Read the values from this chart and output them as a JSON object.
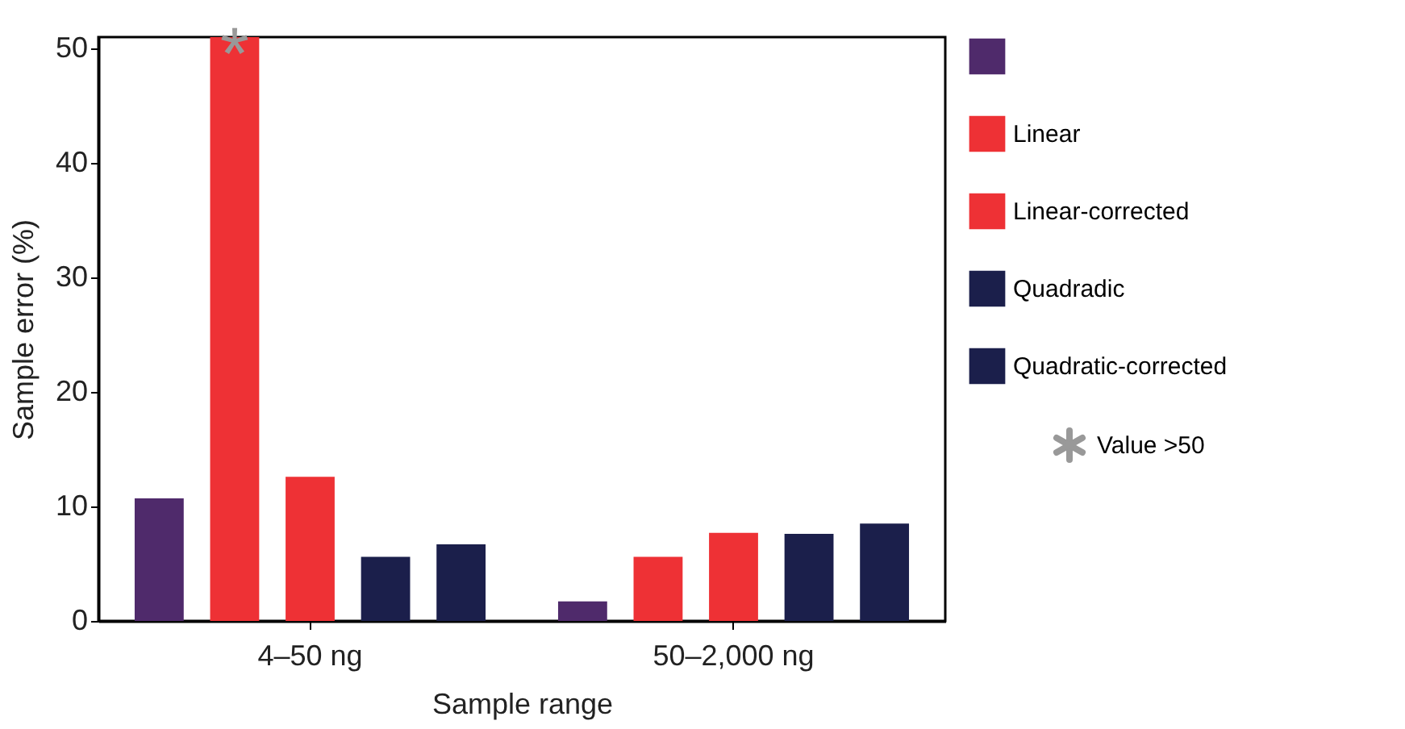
{
  "chart_data": {
    "type": "bar",
    "xlabel": "Sample range",
    "ylabel": "Sample error (%)",
    "categories": [
      "4–50 ng",
      "50–2,000 ng"
    ],
    "series": [
      {
        "color": "#4f2a6b",
        "values": [
          10.7,
          1.7
        ]
      },
      {
        "name": "Linear",
        "color": "#ee3135",
        "values": [
          51,
          5.6
        ]
      },
      {
        "name": "Linear-corrected",
        "color": "#ee3135",
        "values": [
          12.6,
          7.7
        ]
      },
      {
        "name": "Quadradic",
        "color": "#1b1f4b",
        "values": [
          5.6,
          7.6
        ]
      },
      {
        "name": "Quadratic-corrected",
        "color": "#1b1f4b",
        "values": [
          6.7,
          8.5
        ]
      }
    ],
    "ylim": [
      0,
      51
    ],
    "yticks": [
      0,
      10,
      20,
      30,
      40,
      50
    ],
    "grid": false,
    "legend": "right",
    "annotations": [
      "*",
      "Value >50"
    ]
  }
}
